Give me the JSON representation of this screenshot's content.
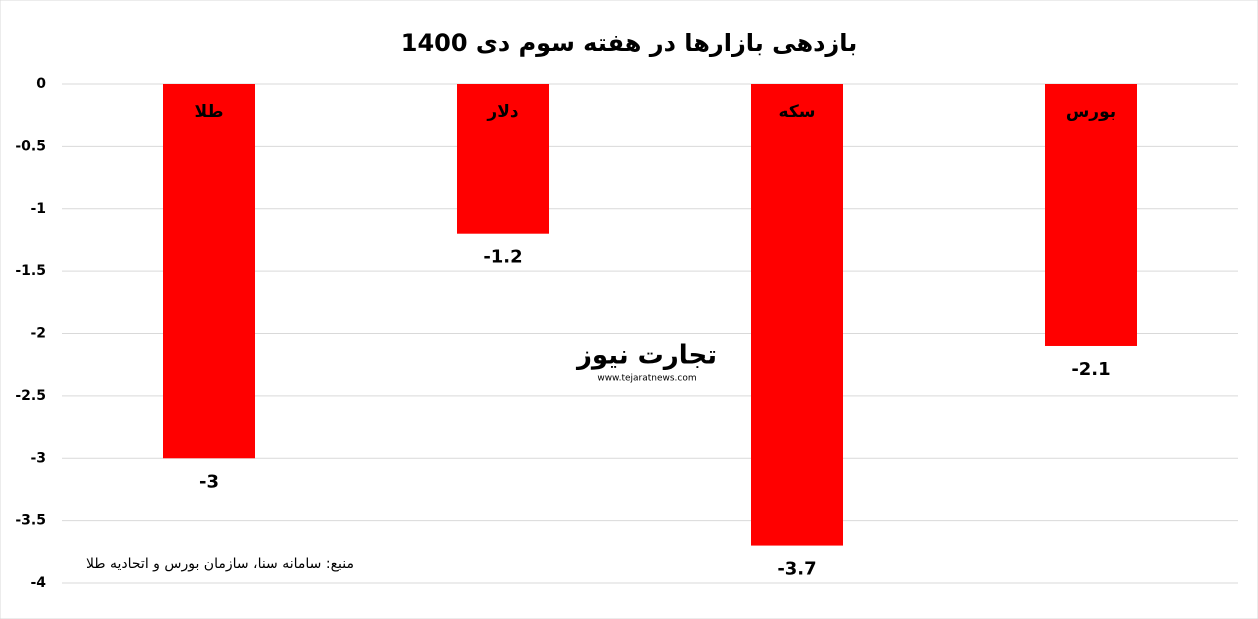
{
  "chart_data": {
    "type": "bar",
    "title": "بازدهی بازارها در هفته سوم دی 1400",
    "categories": [
      "طلا",
      "دلار",
      "سکه",
      "بورس"
    ],
    "values": [
      -3,
      -1.2,
      -3.7,
      -2.1
    ],
    "color": "#ff0000",
    "ylim": [
      -4,
      0
    ],
    "yticks": [
      0,
      -0.5,
      -1,
      -1.5,
      -2,
      -2.5,
      -3,
      -3.5,
      -4
    ],
    "grid": true,
    "source": "منبع: سامانه سنا، سازمان بورس و اتحادیه طلا",
    "watermark": {
      "name": "تجارت نیوز",
      "url": "www.tejaratnews.com"
    }
  }
}
